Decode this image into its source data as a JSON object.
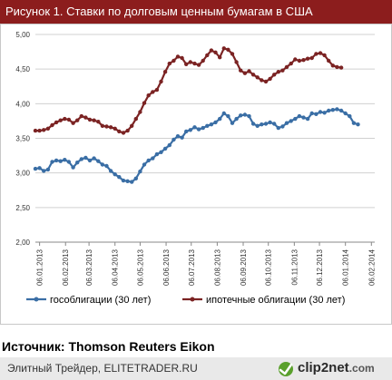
{
  "header": {
    "title": "Рисунок 1. Ставки по долговым ценным  бумагам в США"
  },
  "source": "Источник: Thomson Reuters Eikon",
  "footer": {
    "text": "Элитный Трейдер, ELITETRADER.RU",
    "logo_brand": "clip2net",
    "logo_domain": ".com"
  },
  "colors": {
    "title_bg": "#8c1d1d",
    "series_blue": "#3a6ea5",
    "series_red": "#7b2323"
  },
  "chart_data": {
    "type": "line",
    "yticks": [
      "2,00",
      "2,50",
      "3,00",
      "3,50",
      "4,00",
      "4,50",
      "5,00"
    ],
    "ylim": [
      2.0,
      5.0
    ],
    "xlim": [
      "2013-01-01",
      "2014-02-10"
    ],
    "xticks": [
      {
        "date": "2013-01-06",
        "label": "06.01.2013"
      },
      {
        "date": "2013-02-06",
        "label": "06.02.2013"
      },
      {
        "date": "2013-03-06",
        "label": "06.03.2013"
      },
      {
        "date": "2013-04-06",
        "label": "06.04.2013"
      },
      {
        "date": "2013-05-06",
        "label": "06.05.2013"
      },
      {
        "date": "2013-06-06",
        "label": "06.06.2013"
      },
      {
        "date": "2013-07-06",
        "label": "06.07.2013"
      },
      {
        "date": "2013-08-06",
        "label": "06.08.2013"
      },
      {
        "date": "2013-09-06",
        "label": "06.09.2013"
      },
      {
        "date": "2013-10-06",
        "label": "06.10.2013"
      },
      {
        "date": "2013-11-06",
        "label": "06.11.2013"
      },
      {
        "date": "2013-12-06",
        "label": "06.12.2013"
      },
      {
        "date": "2014-01-06",
        "label": "06.01.2014"
      },
      {
        "date": "2014-02-06",
        "label": "06.02.2014"
      }
    ],
    "grid": true,
    "legend_position": "bottom",
    "series": [
      {
        "name": "гособлигации (30 лет)",
        "color": "#3a6ea5",
        "points": [
          [
            "2013-01-01",
            3.06
          ],
          [
            "2013-01-06",
            3.07
          ],
          [
            "2013-01-11",
            3.03
          ],
          [
            "2013-01-16",
            3.05
          ],
          [
            "2013-01-21",
            3.16
          ],
          [
            "2013-01-26",
            3.18
          ],
          [
            "2013-01-31",
            3.17
          ],
          [
            "2013-02-05",
            3.19
          ],
          [
            "2013-02-10",
            3.16
          ],
          [
            "2013-02-15",
            3.08
          ],
          [
            "2013-02-20",
            3.15
          ],
          [
            "2013-02-25",
            3.2
          ],
          [
            "2013-03-02",
            3.22
          ],
          [
            "2013-03-07",
            3.18
          ],
          [
            "2013-03-12",
            3.21
          ],
          [
            "2013-03-17",
            3.17
          ],
          [
            "2013-03-22",
            3.12
          ],
          [
            "2013-03-27",
            3.1
          ],
          [
            "2013-04-01",
            3.03
          ],
          [
            "2013-04-06",
            2.98
          ],
          [
            "2013-04-11",
            2.94
          ],
          [
            "2013-04-16",
            2.89
          ],
          [
            "2013-04-21",
            2.88
          ],
          [
            "2013-04-26",
            2.87
          ],
          [
            "2013-05-01",
            2.92
          ],
          [
            "2013-05-06",
            3.02
          ],
          [
            "2013-05-11",
            3.12
          ],
          [
            "2013-05-16",
            3.18
          ],
          [
            "2013-05-21",
            3.21
          ],
          [
            "2013-05-26",
            3.27
          ],
          [
            "2013-05-31",
            3.3
          ],
          [
            "2013-06-05",
            3.35
          ],
          [
            "2013-06-10",
            3.4
          ],
          [
            "2013-06-15",
            3.48
          ],
          [
            "2013-06-20",
            3.53
          ],
          [
            "2013-06-25",
            3.51
          ],
          [
            "2013-06-30",
            3.6
          ],
          [
            "2013-07-05",
            3.62
          ],
          [
            "2013-07-10",
            3.66
          ],
          [
            "2013-07-15",
            3.63
          ],
          [
            "2013-07-20",
            3.65
          ],
          [
            "2013-07-25",
            3.68
          ],
          [
            "2013-07-30",
            3.7
          ],
          [
            "2013-08-04",
            3.73
          ],
          [
            "2013-08-09",
            3.78
          ],
          [
            "2013-08-14",
            3.86
          ],
          [
            "2013-08-19",
            3.82
          ],
          [
            "2013-08-24",
            3.72
          ],
          [
            "2013-08-29",
            3.78
          ],
          [
            "2013-09-03",
            3.83
          ],
          [
            "2013-09-08",
            3.84
          ],
          [
            "2013-09-13",
            3.82
          ],
          [
            "2013-09-18",
            3.71
          ],
          [
            "2013-09-23",
            3.68
          ],
          [
            "2013-09-28",
            3.7
          ],
          [
            "2013-10-03",
            3.71
          ],
          [
            "2013-10-08",
            3.73
          ],
          [
            "2013-10-13",
            3.71
          ],
          [
            "2013-10-18",
            3.65
          ],
          [
            "2013-10-23",
            3.67
          ],
          [
            "2013-10-28",
            3.72
          ],
          [
            "2013-11-02",
            3.75
          ],
          [
            "2013-11-07",
            3.78
          ],
          [
            "2013-11-12",
            3.82
          ],
          [
            "2013-11-17",
            3.8
          ],
          [
            "2013-11-22",
            3.78
          ],
          [
            "2013-11-27",
            3.86
          ],
          [
            "2013-12-02",
            3.85
          ],
          [
            "2013-12-07",
            3.88
          ],
          [
            "2013-12-12",
            3.87
          ],
          [
            "2013-12-17",
            3.9
          ],
          [
            "2013-12-22",
            3.91
          ],
          [
            "2013-12-27",
            3.92
          ],
          [
            "2014-01-01",
            3.9
          ],
          [
            "2014-01-06",
            3.86
          ],
          [
            "2014-01-11",
            3.82
          ],
          [
            "2014-01-16",
            3.72
          ],
          [
            "2014-01-21",
            3.7
          ]
        ]
      },
      {
        "name": "ипотечные облигации (30 лет)",
        "color": "#7b2323",
        "points": [
          [
            "2013-01-01",
            3.61
          ],
          [
            "2013-01-06",
            3.61
          ],
          [
            "2013-01-11",
            3.62
          ],
          [
            "2013-01-16",
            3.64
          ],
          [
            "2013-01-21",
            3.69
          ],
          [
            "2013-01-26",
            3.73
          ],
          [
            "2013-01-31",
            3.76
          ],
          [
            "2013-02-05",
            3.78
          ],
          [
            "2013-02-10",
            3.77
          ],
          [
            "2013-02-15",
            3.72
          ],
          [
            "2013-02-20",
            3.76
          ],
          [
            "2013-02-25",
            3.82
          ],
          [
            "2013-03-02",
            3.8
          ],
          [
            "2013-03-07",
            3.77
          ],
          [
            "2013-03-12",
            3.76
          ],
          [
            "2013-03-17",
            3.74
          ],
          [
            "2013-03-22",
            3.68
          ],
          [
            "2013-03-27",
            3.67
          ],
          [
            "2013-04-01",
            3.66
          ],
          [
            "2013-04-06",
            3.64
          ],
          [
            "2013-04-11",
            3.6
          ],
          [
            "2013-04-16",
            3.58
          ],
          [
            "2013-04-21",
            3.61
          ],
          [
            "2013-04-26",
            3.68
          ],
          [
            "2013-05-01",
            3.78
          ],
          [
            "2013-05-06",
            3.88
          ],
          [
            "2013-05-11",
            4.01
          ],
          [
            "2013-05-16",
            4.12
          ],
          [
            "2013-05-21",
            4.17
          ],
          [
            "2013-05-26",
            4.2
          ],
          [
            "2013-05-31",
            4.32
          ],
          [
            "2013-06-05",
            4.46
          ],
          [
            "2013-06-10",
            4.58
          ],
          [
            "2013-06-15",
            4.62
          ],
          [
            "2013-06-20",
            4.68
          ],
          [
            "2013-06-25",
            4.66
          ],
          [
            "2013-06-30",
            4.57
          ],
          [
            "2013-07-05",
            4.6
          ],
          [
            "2013-07-10",
            4.58
          ],
          [
            "2013-07-15",
            4.56
          ],
          [
            "2013-07-20",
            4.62
          ],
          [
            "2013-07-25",
            4.7
          ],
          [
            "2013-07-30",
            4.77
          ],
          [
            "2013-08-04",
            4.74
          ],
          [
            "2013-08-09",
            4.67
          ],
          [
            "2013-08-14",
            4.8
          ],
          [
            "2013-08-19",
            4.78
          ],
          [
            "2013-08-24",
            4.72
          ],
          [
            "2013-08-29",
            4.6
          ],
          [
            "2013-09-03",
            4.48
          ],
          [
            "2013-09-08",
            4.44
          ],
          [
            "2013-09-13",
            4.47
          ],
          [
            "2013-09-18",
            4.42
          ],
          [
            "2013-09-23",
            4.38
          ],
          [
            "2013-09-28",
            4.34
          ],
          [
            "2013-10-03",
            4.32
          ],
          [
            "2013-10-08",
            4.36
          ],
          [
            "2013-10-13",
            4.42
          ],
          [
            "2013-10-18",
            4.46
          ],
          [
            "2013-10-23",
            4.48
          ],
          [
            "2013-10-28",
            4.53
          ],
          [
            "2013-11-02",
            4.58
          ],
          [
            "2013-11-07",
            4.64
          ],
          [
            "2013-11-12",
            4.62
          ],
          [
            "2013-11-17",
            4.63
          ],
          [
            "2013-11-22",
            4.65
          ],
          [
            "2013-11-27",
            4.66
          ],
          [
            "2013-12-02",
            4.72
          ],
          [
            "2013-12-07",
            4.73
          ],
          [
            "2013-12-12",
            4.7
          ],
          [
            "2013-12-17",
            4.62
          ],
          [
            "2013-12-22",
            4.55
          ],
          [
            "2013-12-27",
            4.53
          ],
          [
            "2014-01-01",
            4.52
          ]
        ]
      }
    ]
  }
}
